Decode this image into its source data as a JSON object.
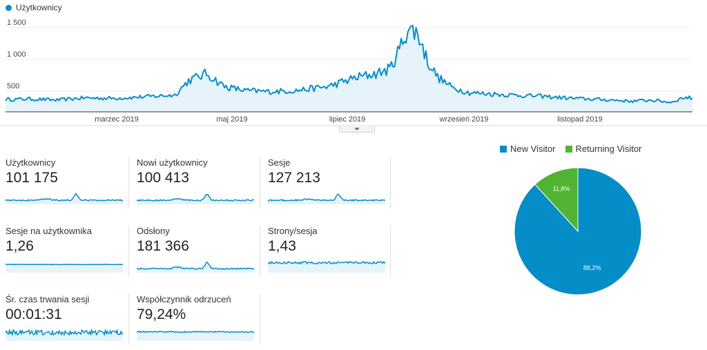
{
  "main_chart": {
    "legend_label": "Użytkownicy",
    "color": "#058dc7",
    "y_ticks": [
      "1 500",
      "1 000",
      "500"
    ],
    "x_ticks": [
      "marzec 2019",
      "maj 2019",
      "lipiec 2019",
      "wrzesień 2019",
      "listopad 2019"
    ]
  },
  "metrics": [
    {
      "label": "Użytkownicy",
      "value": "101 175"
    },
    {
      "label": "Nowi użytkownicy",
      "value": "100 413"
    },
    {
      "label": "Sesje",
      "value": "127 213"
    },
    {
      "label": "Sesje na użytkownika",
      "value": "1,26"
    },
    {
      "label": "Odsłony",
      "value": "181 366"
    },
    {
      "label": "Strony/sesja",
      "value": "1,43"
    },
    {
      "label": "Śr. czas trwania sesji",
      "value": "00:01:31"
    },
    {
      "label": "Współczynnik odrzuceń",
      "value": "79,24%"
    }
  ],
  "pie": {
    "legend": [
      {
        "name": "New Visitor",
        "color": "#058dc7"
      },
      {
        "name": "Returning Visitor",
        "color": "#50b432"
      }
    ],
    "slices": [
      {
        "name": "New Visitor",
        "percent": 88.2,
        "label": "88,2%",
        "color": "#058dc7"
      },
      {
        "name": "Returning Visitor",
        "percent": 11.8,
        "label": "11,8%",
        "color": "#50b432"
      }
    ]
  },
  "chart_data": {
    "type": "area",
    "series": [
      {
        "name": "Użytkownicy",
        "color": "#058dc7"
      }
    ],
    "x": [
      "2019-01-20",
      "2019-02-01",
      "2019-02-15",
      "2019-03-01",
      "2019-03-15",
      "2019-04-01",
      "2019-04-15",
      "2019-04-22",
      "2019-05-01",
      "2019-05-10",
      "2019-05-20",
      "2019-06-01",
      "2019-06-15",
      "2019-07-01",
      "2019-07-15",
      "2019-07-25",
      "2019-08-01",
      "2019-08-05",
      "2019-08-10",
      "2019-08-15",
      "2019-08-20",
      "2019-08-25",
      "2019-09-01",
      "2019-09-10",
      "2019-09-20",
      "2019-10-01",
      "2019-10-15",
      "2019-11-01",
      "2019-11-15",
      "2019-12-01",
      "2019-12-10",
      "2019-12-20",
      "2019-12-27",
      "2019-12-31"
    ],
    "values": [
      220,
      230,
      210,
      250,
      240,
      270,
      300,
      560,
      680,
      450,
      380,
      360,
      380,
      450,
      610,
      680,
      760,
      1050,
      1480,
      1400,
      900,
      620,
      440,
      340,
      320,
      300,
      280,
      240,
      220,
      190,
      210,
      170,
      260,
      240
    ],
    "ylim": [
      0,
      1600
    ],
    "x_tick_labels": [
      "marzec 2019",
      "maj 2019",
      "lipiec 2019",
      "wrzesień 2019",
      "listopad 2019"
    ],
    "y_tick_labels": [
      "500",
      "1 000",
      "1 500"
    ],
    "grid": true,
    "legend": "top-left"
  }
}
